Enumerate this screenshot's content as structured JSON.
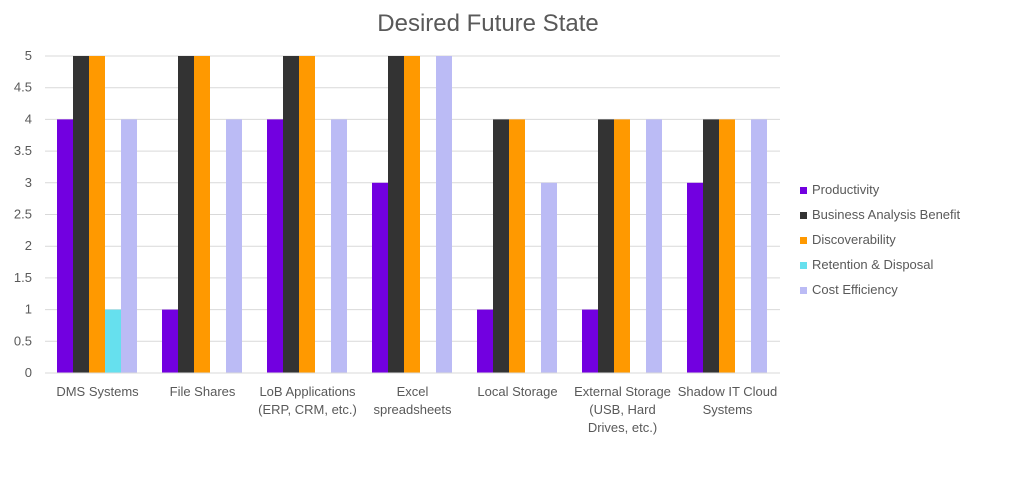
{
  "chart_data": {
    "type": "bar",
    "title": "Desired Future State",
    "xlabel": "",
    "ylabel": "",
    "ylim": [
      0,
      5
    ],
    "yticks": [
      "0",
      "0.5",
      "1",
      "1.5",
      "2",
      "2.5",
      "3",
      "3.5",
      "4",
      "4.5",
      "5"
    ],
    "grid": true,
    "legend_position": "right",
    "categories": [
      [
        "DMS Systems"
      ],
      [
        "File Shares"
      ],
      [
        "LoB Applications",
        "(ERP, CRM, etc.)"
      ],
      [
        "Excel",
        "spreadsheets"
      ],
      [
        "Local Storage"
      ],
      [
        "External Storage",
        "(USB, Hard",
        "Drives, etc.)"
      ],
      [
        "Shadow IT Cloud",
        "Systems"
      ]
    ],
    "series": [
      {
        "name": "Productivity",
        "color": "#7200e0",
        "values": [
          4,
          1,
          4,
          3,
          1,
          1,
          3
        ]
      },
      {
        "name": "Business Analysis Benefit",
        "color": "#333333",
        "values": [
          5,
          5,
          5,
          5,
          4,
          4,
          4
        ]
      },
      {
        "name": "Discoverability",
        "color": "#ff9900",
        "values": [
          5,
          5,
          5,
          5,
          4,
          4,
          4
        ]
      },
      {
        "name": "Retention & Disposal",
        "color": "#66e0ee",
        "values": [
          1,
          0,
          0,
          0,
          0,
          0,
          0
        ]
      },
      {
        "name": "Cost Efficiency",
        "color": "#bbbbf5",
        "values": [
          4,
          4,
          4,
          5,
          3,
          4,
          4
        ]
      }
    ]
  }
}
